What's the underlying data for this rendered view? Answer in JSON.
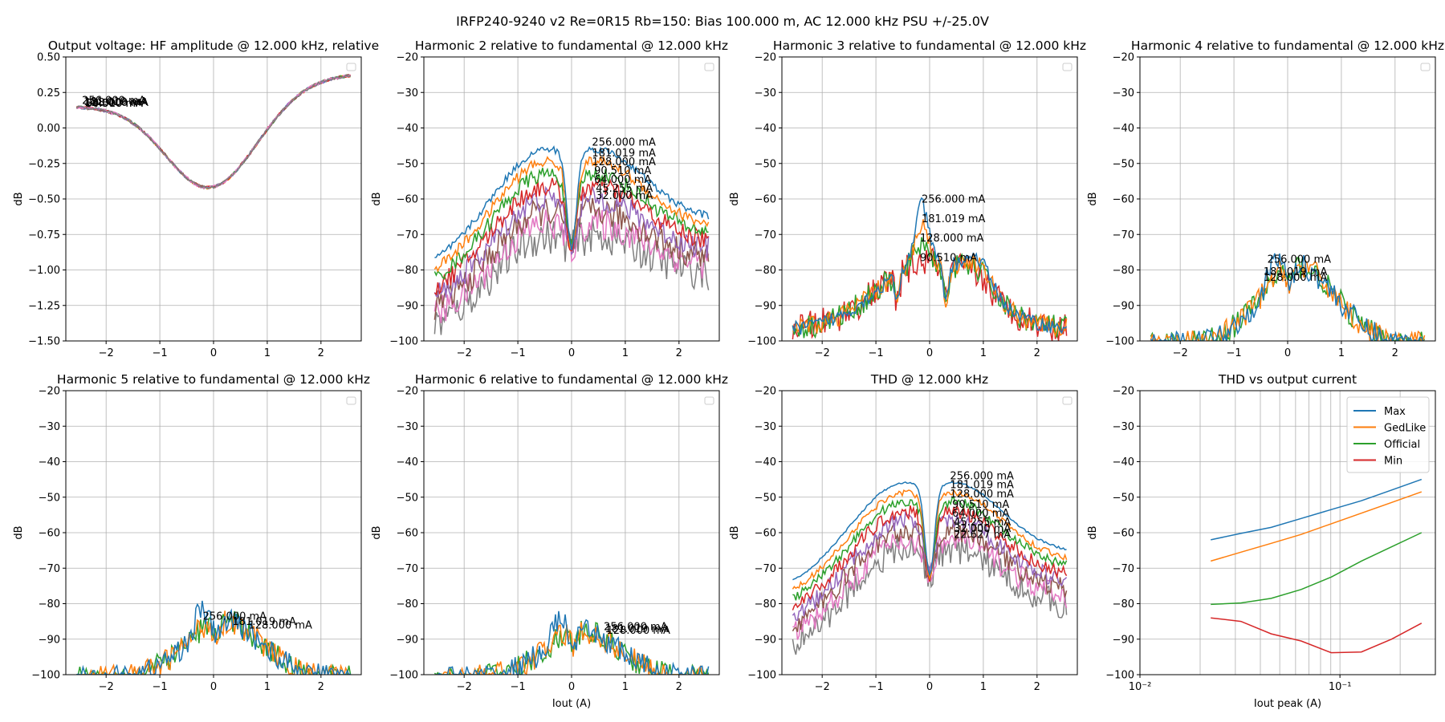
{
  "suptitle": "IRFP240-9240 v2 Re=0R15 Rb=150: Bias 100.000 m, AC 12.000 kHz PSU +/-25.0V",
  "colors": [
    "#1f77b4",
    "#ff7f0e",
    "#2ca02c",
    "#d62728",
    "#9467bd",
    "#8c564b",
    "#e377c2",
    "#7f7f7f",
    "#bcbd22",
    "#17becf"
  ],
  "bias_labels": [
    "256.000 mA",
    "181.019 mA",
    "128.000 mA",
    "90.510 mA",
    "64.000 mA",
    "45.255 mA",
    "32.000 mA",
    "22.627 mA"
  ],
  "chart_data": [
    {
      "type": "line",
      "title": "Output voltage: HF amplitude @ 12.000 kHz, relative",
      "xlabel": "",
      "ylabel": "dB",
      "xlim": [
        -2.75,
        2.75
      ],
      "ylim": [
        -1.5,
        0.5
      ],
      "xticks": [
        -2,
        -1,
        0,
        1,
        2
      ],
      "xtick_labels": [
        "−2",
        "−1",
        "0",
        "1",
        "2"
      ],
      "yticks": [
        -1.5,
        -1.25,
        -1.0,
        -0.75,
        -0.5,
        -0.25,
        0.0,
        0.25,
        0.5
      ],
      "ytick_labels": [
        "−1.50",
        "−1.25",
        "−1.00",
        "−0.75",
        "−0.50",
        "−0.25",
        "0.00",
        "0.25",
        "0.50"
      ],
      "grid": true,
      "legend": "empty box top-right",
      "shape": {
        "kind": "vshape",
        "peakx": -0.1,
        "peak": -0.42,
        "left": 0.15,
        "right": 0.38
      },
      "series": [
        {
          "values_note": "8 overlapping bias curves"
        }
      ],
      "annotations": [
        {
          "text": "256.000 mA",
          "x": -2.45,
          "y": 0.17
        },
        {
          "text": "181.019 mA",
          "x": -2.42,
          "y": 0.16
        },
        {
          "text": "128.000 mA",
          "x": -2.4,
          "y": 0.155
        },
        {
          "text": "90.510 mA",
          "x": -2.38,
          "y": 0.15
        },
        {
          "text": "64.000 mA",
          "x": -2.38,
          "y": 0.15
        }
      ]
    },
    {
      "type": "line",
      "title": "Harmonic 2 relative to fundamental @ 12.000 kHz",
      "xlabel": "",
      "ylabel": "dB",
      "xlim": [
        -2.75,
        2.75
      ],
      "ylim": [
        -100,
        -20
      ],
      "xticks": [
        -2,
        -1,
        0,
        1,
        2
      ],
      "xtick_labels": [
        "−2",
        "−1",
        "0",
        "1",
        "2"
      ],
      "yticks": [
        -100,
        -90,
        -80,
        -70,
        -60,
        -50,
        -40,
        -30,
        -20
      ],
      "ytick_labels": [
        "−100",
        "−90",
        "−80",
        "−70",
        "−60",
        "−50",
        "−40",
        "−30",
        "−20"
      ],
      "grid": true,
      "legend": "empty box top-right",
      "shape": {
        "kind": "hump",
        "n": 8,
        "peak0": -46,
        "step": 3.5,
        "edge": -82,
        "right": -66,
        "dip": -72,
        "noise": 1
      },
      "annotations": [
        {
          "text": "256.000 mA",
          "x": 0.38,
          "y": -45
        },
        {
          "text": "181.019 mA",
          "x": 0.38,
          "y": -48
        },
        {
          "text": "128.000 mA",
          "x": 0.38,
          "y": -50.5
        },
        {
          "text": "90.510 mA",
          "x": 0.42,
          "y": -53
        },
        {
          "text": "64.000 mA",
          "x": 0.42,
          "y": -55.5
        },
        {
          "text": "45.255 mA",
          "x": 0.45,
          "y": -58
        },
        {
          "text": "32.000 mA",
          "x": 0.45,
          "y": -60
        }
      ]
    },
    {
      "type": "line",
      "title": "Harmonic 3 relative to fundamental @ 12.000 kHz",
      "xlabel": "",
      "ylabel": "dB",
      "xlim": [
        -2.75,
        2.75
      ],
      "ylim": [
        -100,
        -20
      ],
      "xticks": [
        -2,
        -1,
        0,
        1,
        2
      ],
      "xtick_labels": [
        "−2",
        "−1",
        "0",
        "1",
        "2"
      ],
      "yticks": [
        -100,
        -90,
        -80,
        -70,
        -60,
        -50,
        -40,
        -30,
        -20
      ],
      "ytick_labels": [
        "−100",
        "−90",
        "−80",
        "−70",
        "−60",
        "−50",
        "−40",
        "−30",
        "−20"
      ],
      "grid": true,
      "legend": "empty box top-right",
      "shape": {
        "kind": "h3",
        "n": 4
      },
      "annotations": [
        {
          "text": "256.000 mA",
          "x": -0.15,
          "y": -61
        },
        {
          "text": "181.019 mA",
          "x": -0.15,
          "y": -66.5
        },
        {
          "text": "128.000 mA",
          "x": -0.18,
          "y": -72
        },
        {
          "text": "90.510 mA",
          "x": -0.18,
          "y": -77.5
        }
      ]
    },
    {
      "type": "line",
      "title": "Harmonic 4 relative to fundamental @ 12.000 kHz",
      "xlabel": "",
      "ylabel": "dB",
      "xlim": [
        -2.75,
        2.75
      ],
      "ylim": [
        -100,
        -20
      ],
      "xticks": [
        -2,
        -1,
        0,
        1,
        2
      ],
      "xtick_labels": [
        "−2",
        "−1",
        "0",
        "1",
        "2"
      ],
      "yticks": [
        -100,
        -90,
        -80,
        -70,
        -60,
        -50,
        -40,
        -30,
        -20
      ],
      "ytick_labels": [
        "−100",
        "−90",
        "−80",
        "−70",
        "−60",
        "−50",
        "−40",
        "−30",
        "−20"
      ],
      "grid": true,
      "legend": "empty box top-right",
      "shape": {
        "kind": "bump",
        "n": 3,
        "peak": -80,
        "base": -100
      },
      "annotations": [
        {
          "text": "256.000 mA",
          "x": -0.38,
          "y": -78
        },
        {
          "text": "181.019 mA",
          "x": -0.45,
          "y": -81.5
        },
        {
          "text": "128.000 mA",
          "x": -0.45,
          "y": -83
        }
      ]
    },
    {
      "type": "line",
      "title": "Harmonic 5 relative to fundamental @ 12.000 kHz",
      "xlabel": "",
      "ylabel": "dB",
      "xlim": [
        -2.75,
        2.75
      ],
      "ylim": [
        -100,
        -20
      ],
      "xticks": [
        -2,
        -1,
        0,
        1,
        2
      ],
      "xtick_labels": [
        "−2",
        "−1",
        "0",
        "1",
        "2"
      ],
      "yticks": [
        -100,
        -90,
        -80,
        -70,
        -60,
        -50,
        -40,
        -30,
        -20
      ],
      "ytick_labels": [
        "−100",
        "−90",
        "−80",
        "−70",
        "−60",
        "−50",
        "−40",
        "−30",
        "−20"
      ],
      "grid": true,
      "legend": "empty box top-right",
      "shape": {
        "kind": "bump",
        "n": 3,
        "peak": -86,
        "base": -100
      },
      "annotations": [
        {
          "text": "256.000 mA",
          "x": -0.2,
          "y": -84.5
        },
        {
          "text": "181.019 mA",
          "x": 0.35,
          "y": -86
        },
        {
          "text": "128.000 mA",
          "x": 0.65,
          "y": -87
        }
      ]
    },
    {
      "type": "line",
      "title": "Harmonic 6 relative to fundamental @ 12.000 kHz",
      "xlabel": "Iout (A)",
      "ylabel": "dB",
      "xlim": [
        -2.75,
        2.75
      ],
      "ylim": [
        -100,
        -20
      ],
      "xticks": [
        -2,
        -1,
        0,
        1,
        2
      ],
      "xtick_labels": [
        "−2",
        "−1",
        "0",
        "1",
        "2"
      ],
      "yticks": [
        -100,
        -90,
        -80,
        -70,
        -60,
        -50,
        -40,
        -30,
        -20
      ],
      "ytick_labels": [
        "−100",
        "−90",
        "−80",
        "−70",
        "−60",
        "−50",
        "−40",
        "−30",
        "−20"
      ],
      "grid": true,
      "legend": "empty box top-right",
      "shape": {
        "kind": "bump",
        "n": 3,
        "peak": -89,
        "base": -100
      },
      "annotations": [
        {
          "text": "256.000 mA",
          "x": 0.6,
          "y": -87.5
        },
        {
          "text": "181.019 mA",
          "x": 0.62,
          "y": -88
        },
        {
          "text": "128.000 mA",
          "x": 0.65,
          "y": -88.5
        }
      ]
    },
    {
      "type": "line",
      "title": "THD @ 12.000 kHz",
      "xlabel": "",
      "ylabel": "dB",
      "xlim": [
        -2.75,
        2.75
      ],
      "ylim": [
        -100,
        -20
      ],
      "xticks": [
        -2,
        -1,
        0,
        1,
        2
      ],
      "xtick_labels": [
        "−2",
        "−1",
        "0",
        "1",
        "2"
      ],
      "yticks": [
        -100,
        -90,
        -80,
        -70,
        -60,
        -50,
        -40,
        -30,
        -20
      ],
      "ytick_labels": [
        "−100",
        "−90",
        "−80",
        "−70",
        "−60",
        "−50",
        "−40",
        "−30",
        "−20"
      ],
      "grid": true,
      "legend": "empty box top-right",
      "shape": {
        "kind": "hump",
        "n": 8,
        "peak0": -46,
        "step": 2.7,
        "edge": -78,
        "right": -66,
        "dip": -70,
        "noise": 0
      },
      "annotations": [
        {
          "text": "256.000 mA",
          "x": 0.38,
          "y": -45
        },
        {
          "text": "181.019 mA",
          "x": 0.38,
          "y": -47.5
        },
        {
          "text": "128.000 mA",
          "x": 0.38,
          "y": -50
        },
        {
          "text": "90.510 mA",
          "x": 0.42,
          "y": -53
        },
        {
          "text": "64.000 mA",
          "x": 0.42,
          "y": -55.5
        },
        {
          "text": "45.255 mA",
          "x": 0.45,
          "y": -58
        },
        {
          "text": "32.000 mA",
          "x": 0.45,
          "y": -59.8
        },
        {
          "text": "22.627 mA",
          "x": 0.45,
          "y": -61.5
        }
      ]
    },
    {
      "type": "line",
      "title": "THD vs output current",
      "xlabel": "Iout peak (A)",
      "ylabel": "dB",
      "xscale": "log",
      "xlim": [
        0.01,
        0.3
      ],
      "ylim": [
        -100,
        -20
      ],
      "xticks": [
        0.01,
        0.1
      ],
      "xtick_labels": [
        "10⁻²",
        "10⁻¹"
      ],
      "yticks": [
        -100,
        -90,
        -80,
        -70,
        -60,
        -50,
        -40,
        -30,
        -20
      ],
      "ytick_labels": [
        "−100",
        "−90",
        "−80",
        "−70",
        "−60",
        "−50",
        "−40",
        "−30",
        "−20"
      ],
      "grid": true,
      "legend": "top-right",
      "x": [
        0.0226,
        0.032,
        0.0453,
        0.064,
        0.0905,
        0.128,
        0.181,
        0.256
      ],
      "series": [
        {
          "name": "Max",
          "values": [
            -62,
            -60.2,
            -58.5,
            -56,
            -53.5,
            -51,
            -48,
            -45
          ]
        },
        {
          "name": "GedLike",
          "values": [
            -68,
            -65.5,
            -63,
            -60.5,
            -57.5,
            -54.5,
            -51.5,
            -48.5
          ]
        },
        {
          "name": "Official",
          "values": [
            -80.2,
            -79.8,
            -78.5,
            -76,
            -72.5,
            -68,
            -64,
            -60
          ]
        },
        {
          "name": "Min",
          "values": [
            -84,
            -85,
            -88.5,
            -90.5,
            -93.8,
            -93.6,
            -90,
            -85.5
          ]
        }
      ]
    }
  ]
}
